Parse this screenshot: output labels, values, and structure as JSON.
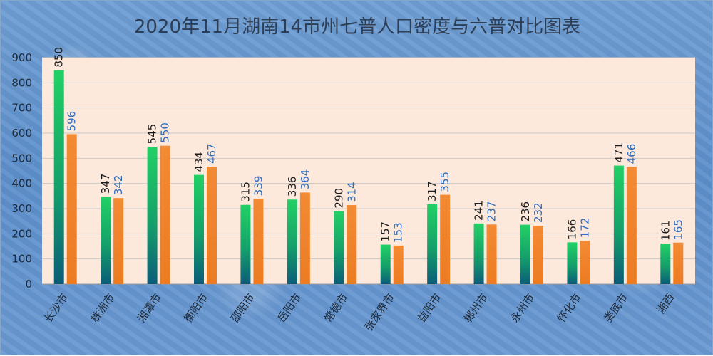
{
  "title": "2020年11月湖南14市州七普人口密度与六普对比图表",
  "colors": {
    "seventh": "#1fbf5a",
    "sixth": "#f0842e",
    "plot_bg": "#fde9dc",
    "label6": "#2f6dbd"
  },
  "chart_data": {
    "type": "bar",
    "categories": [
      "长沙市",
      "株洲市",
      "湘潭市",
      "衡阳市",
      "邵阳市",
      "岳阳市",
      "常德市",
      "张家界市",
      "益阳市",
      "郴州市",
      "永州市",
      "怀化市",
      "娄底市",
      "湘西"
    ],
    "series": [
      {
        "values": [
          850,
          347,
          545,
          434,
          315,
          336,
          290,
          157,
          317,
          241,
          236,
          166,
          471,
          161
        ]
      },
      {
        "values": [
          596,
          342,
          550,
          467,
          339,
          364,
          314,
          153,
          355,
          237,
          232,
          172,
          466,
          165
        ]
      }
    ],
    "ylim": [
      0,
      900
    ],
    "yticks": [
      0,
      100,
      200,
      300,
      400,
      500,
      600,
      700,
      800,
      900
    ],
    "grid": true
  }
}
